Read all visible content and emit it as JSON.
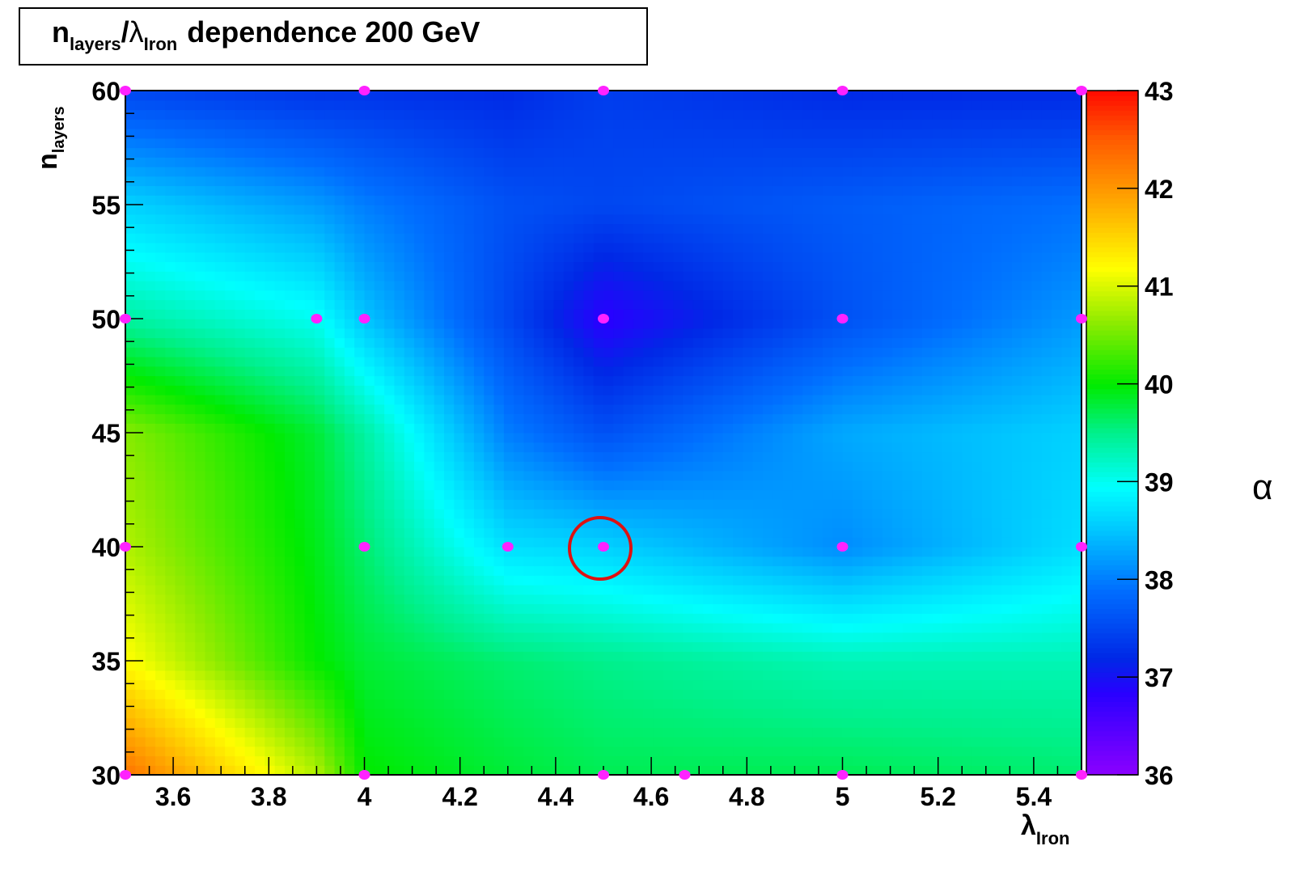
{
  "chart_data": {
    "type": "heatmap",
    "title": {
      "n": "n",
      "n_sub": "layers",
      "slash": "/",
      "lambda": "λ",
      "lambda_sub": "Iron",
      "rest": "dependence 200 GeV"
    },
    "xlabel": {
      "symbol": "λ",
      "sub": "Iron"
    },
    "ylabel": {
      "symbol": "n",
      "sub": "layers"
    },
    "zlabel": "α",
    "xlim": [
      3.5,
      5.5
    ],
    "ylim": [
      30,
      60
    ],
    "zlim": [
      36,
      43
    ],
    "x_ticks": [
      "3.6",
      "3.8",
      "4",
      "4.2",
      "4.4",
      "4.6",
      "4.8",
      "5",
      "5.2",
      "5.4"
    ],
    "y_ticks": [
      "30",
      "35",
      "40",
      "45",
      "50",
      "55",
      "60"
    ],
    "z_ticks": [
      "36",
      "37",
      "38",
      "39",
      "40",
      "41",
      "42",
      "43"
    ],
    "grid": false,
    "legend": "color scale right",
    "colors": {
      "marker": "#ff22ff",
      "highlight": "#dd1111",
      "frame": "#000000"
    },
    "sample_points": [
      {
        "x": 3.5,
        "y": 60
      },
      {
        "x": 4.0,
        "y": 60
      },
      {
        "x": 4.5,
        "y": 60
      },
      {
        "x": 5.0,
        "y": 60
      },
      {
        "x": 5.5,
        "y": 60
      },
      {
        "x": 3.5,
        "y": 50
      },
      {
        "x": 3.9,
        "y": 50
      },
      {
        "x": 4.0,
        "y": 50
      },
      {
        "x": 4.5,
        "y": 50
      },
      {
        "x": 5.0,
        "y": 50
      },
      {
        "x": 5.5,
        "y": 50
      },
      {
        "x": 3.5,
        "y": 40
      },
      {
        "x": 4.0,
        "y": 40
      },
      {
        "x": 4.3,
        "y": 40
      },
      {
        "x": 4.5,
        "y": 40
      },
      {
        "x": 5.0,
        "y": 40
      },
      {
        "x": 5.5,
        "y": 40
      },
      {
        "x": 3.5,
        "y": 30
      },
      {
        "x": 4.0,
        "y": 30
      },
      {
        "x": 4.5,
        "y": 30
      },
      {
        "x": 4.67,
        "y": 30
      },
      {
        "x": 5.0,
        "y": 30
      },
      {
        "x": 5.5,
        "y": 30
      }
    ],
    "highlighted_point": {
      "x": 4.5,
      "y": 40
    },
    "z_values": {
      "x": [
        3.5,
        3.9,
        4.0,
        4.3,
        4.5,
        5.0,
        5.5
      ],
      "y": [
        30,
        35,
        40,
        45,
        50,
        55,
        60
      ],
      "rows": [
        [
          42.3,
          40.8,
          40.0,
          39.8,
          39.7,
          39.7,
          39.6
        ],
        [
          41.2,
          40.0,
          39.8,
          39.6,
          39.5,
          39.3,
          39.3
        ],
        [
          40.8,
          39.9,
          39.6,
          38.7,
          38.6,
          38.1,
          38.7
        ],
        [
          40.6,
          39.8,
          39.4,
          38.0,
          37.6,
          38.3,
          38.6
        ],
        [
          39.4,
          39.0,
          38.5,
          37.5,
          36.8,
          37.6,
          38.2
        ],
        [
          38.6,
          38.2,
          38.0,
          37.6,
          37.5,
          37.7,
          37.9
        ],
        [
          37.5,
          37.3,
          37.3,
          37.2,
          37.4,
          37.2,
          37.2
        ]
      ]
    }
  }
}
